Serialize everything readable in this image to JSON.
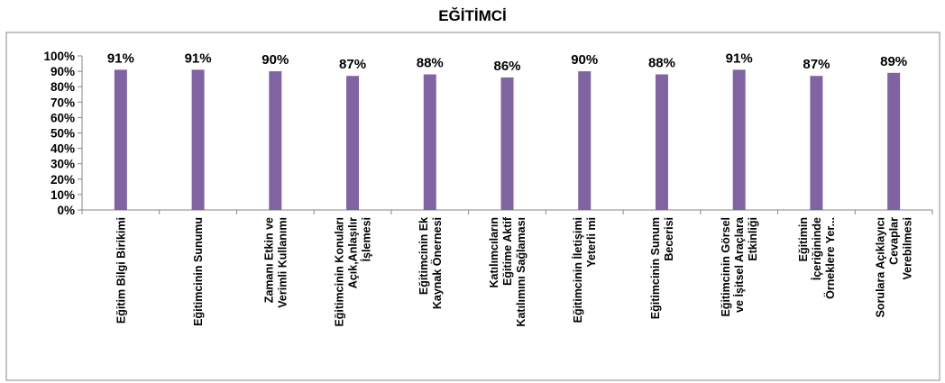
{
  "chart_data": {
    "type": "bar",
    "title": "EĞİTİMCİ",
    "categories": [
      [
        "Eğitim Bilgi Birikimi"
      ],
      [
        "Eğitimcinin Sunumu"
      ],
      [
        "Zamanı Etkin ve",
        "Verimli Kullanımı"
      ],
      [
        "Eğitimcinin Konuları",
        "Açık,Anlaşılır",
        "İşlemesi"
      ],
      [
        "Eğitimcinin Ek",
        "Kaynak Önernesi"
      ],
      [
        "Katılımcıların",
        "Eğitime Aktif",
        "Katılımını Sağlaması"
      ],
      [
        "Eğitimcinin İletişimi",
        "Yeterli mi"
      ],
      [
        "Eğitimcinin Sunum",
        "Becerisi"
      ],
      [
        "Eğitimcinin Görsel",
        "ve İşitsel Araçlara",
        "Etkinliği"
      ],
      [
        "Eğitimin",
        "İçeriğininde",
        "Örneklere Yer..."
      ],
      [
        "Sorulara Açıklayıcı",
        "Cevaplar",
        "Verebilmesi"
      ]
    ],
    "values": [
      0.91,
      0.91,
      0.9,
      0.87,
      0.88,
      0.86,
      0.9,
      0.88,
      0.91,
      0.87,
      0.89
    ],
    "data_labels": [
      "91%",
      "91%",
      "90%",
      "87%",
      "88%",
      "86%",
      "90%",
      "88%",
      "91%",
      "87%",
      "89%"
    ],
    "ylim": [
      0,
      1
    ],
    "yticks": [
      "0%",
      "10%",
      "20%",
      "30%",
      "40%",
      "50%",
      "60%",
      "70%",
      "80%",
      "90%",
      "100%"
    ],
    "xlabel": "",
    "ylabel": "",
    "grid": false,
    "legend": "none",
    "bar_color": "#8064a2",
    "axis_color": "#868686"
  }
}
